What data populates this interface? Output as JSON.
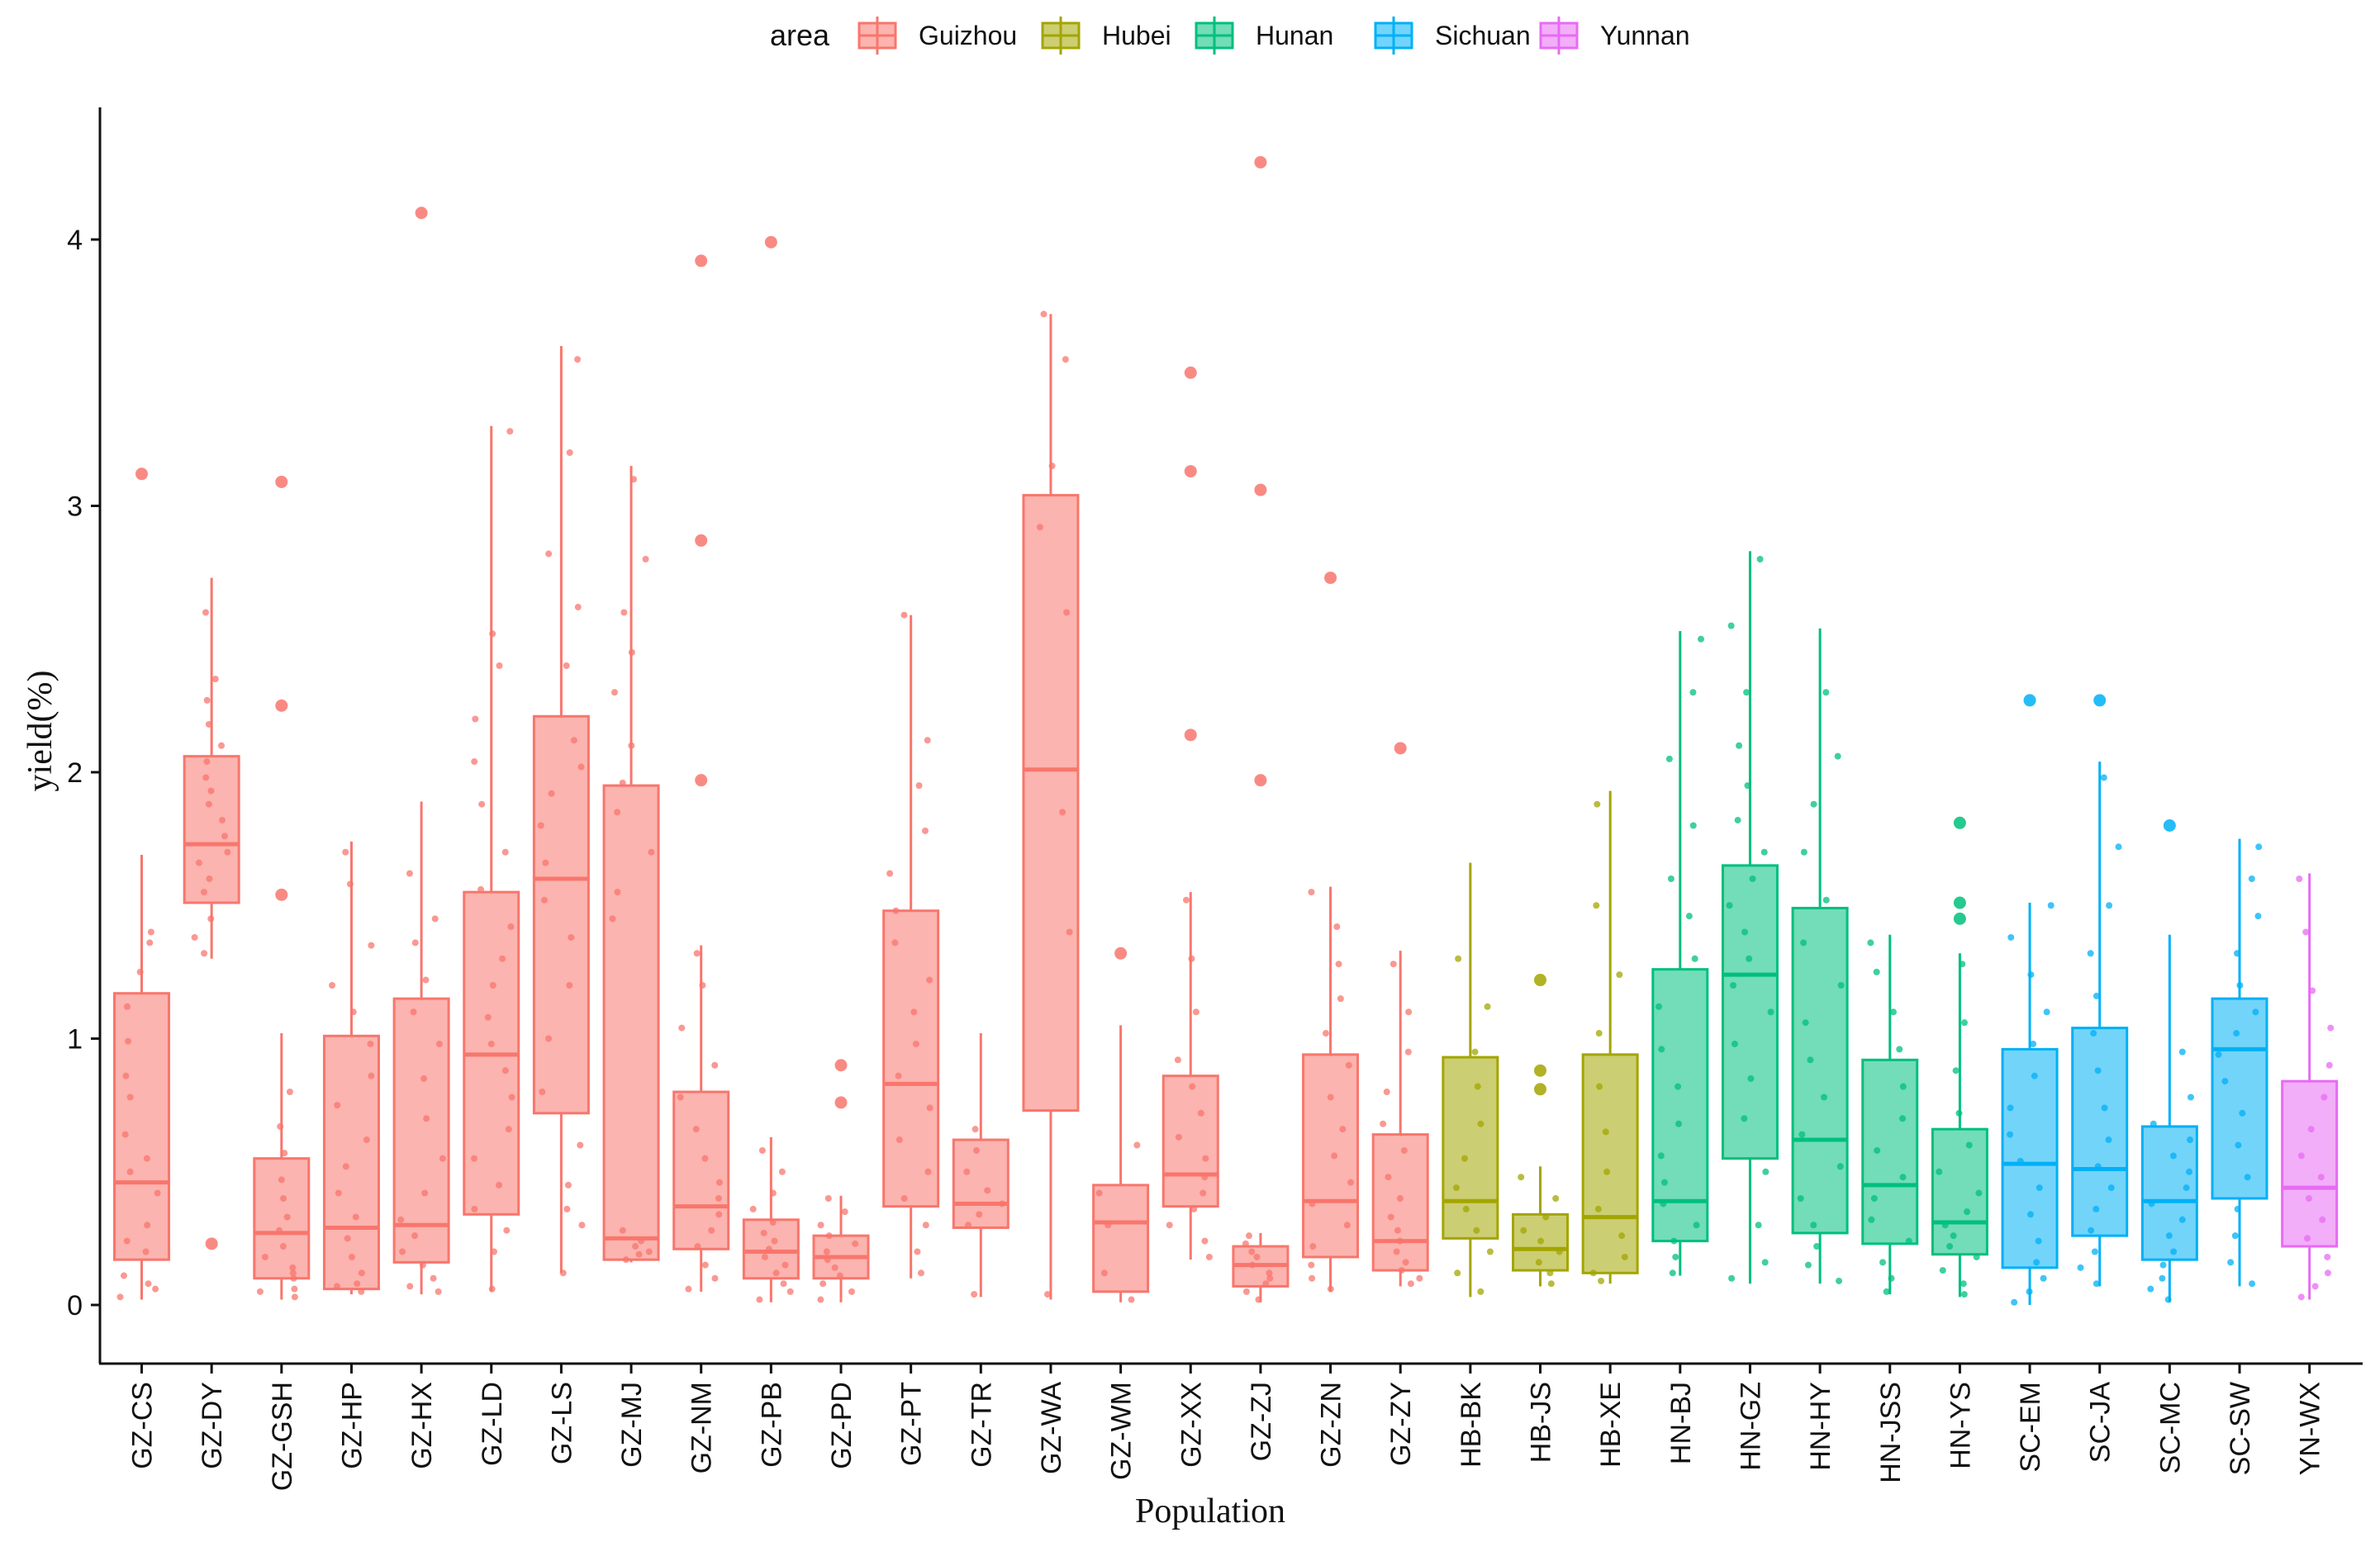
{
  "chart_data": {
    "type": "boxplot",
    "title": "",
    "xlabel": "Population",
    "ylabel": "yield(%)",
    "ylim": [
      -0.2,
      4.45
    ],
    "yticks": [
      0,
      1,
      2,
      3,
      4
    ],
    "ytick_labels": [
      "0",
      "1",
      "2",
      "3",
      "4"
    ],
    "grid": false,
    "legend": {
      "title": "area",
      "placement": "top-center",
      "entries": [
        {
          "name": "Guizhou",
          "color": "#F8766D"
        },
        {
          "name": "Hubei",
          "color": "#A3A500"
        },
        {
          "name": "Hunan",
          "color": "#00BF7D"
        },
        {
          "name": "Sichuan",
          "color": "#00B0F6"
        },
        {
          "name": "Yunnan",
          "color": "#E76BF3"
        }
      ]
    },
    "groups": [
      {
        "label": "GZ-CS",
        "area": "Guizhou",
        "whisker_low": 0.02,
        "q1": 0.17,
        "median": 0.46,
        "q3": 1.17,
        "whisker_high": 1.69,
        "outliers": [
          3.12
        ],
        "points": [
          0.03,
          0.06,
          0.11,
          0.2,
          0.24,
          0.3,
          0.42,
          0.5,
          0.64,
          0.78,
          0.86,
          0.99,
          1.12,
          1.25,
          1.36,
          1.4,
          0.08,
          0.55
        ]
      },
      {
        "label": "GZ-DY",
        "area": "Guizhou",
        "whisker_low": 1.3,
        "q1": 1.51,
        "median": 1.73,
        "q3": 2.06,
        "whisker_high": 2.73,
        "outliers": [
          0.23
        ],
        "points": [
          1.32,
          1.38,
          1.45,
          1.55,
          1.6,
          1.66,
          1.7,
          1.76,
          1.82,
          1.88,
          1.93,
          1.98,
          2.04,
          2.1,
          2.18,
          2.27,
          2.35,
          2.6
        ]
      },
      {
        "label": "GZ-GSH",
        "area": "Guizhou",
        "whisker_low": 0.02,
        "q1": 0.1,
        "median": 0.27,
        "q3": 0.55,
        "whisker_high": 1.02,
        "outliers": [
          3.09,
          2.25,
          1.54
        ],
        "points": [
          0.03,
          0.06,
          0.1,
          0.14,
          0.18,
          0.22,
          0.28,
          0.33,
          0.4,
          0.47,
          0.57,
          0.67,
          0.8,
          0.05,
          0.12
        ]
      },
      {
        "label": "GZ-HP",
        "area": "Guizhou",
        "whisker_low": 0.04,
        "q1": 0.06,
        "median": 0.29,
        "q3": 1.01,
        "whisker_high": 1.74,
        "outliers": [],
        "points": [
          0.05,
          0.08,
          0.12,
          0.18,
          0.25,
          0.33,
          0.42,
          0.52,
          0.62,
          0.75,
          0.86,
          0.98,
          1.1,
          1.2,
          1.35,
          1.58,
          1.7,
          0.07
        ]
      },
      {
        "label": "GZ-HX",
        "area": "Guizhou",
        "whisker_low": 0.04,
        "q1": 0.16,
        "median": 0.3,
        "q3": 1.15,
        "whisker_high": 1.89,
        "outliers": [
          4.1
        ],
        "points": [
          0.05,
          0.1,
          0.15,
          0.2,
          0.26,
          0.32,
          0.42,
          0.55,
          0.7,
          0.85,
          0.98,
          1.1,
          1.22,
          1.36,
          1.45,
          1.62,
          0.07
        ]
      },
      {
        "label": "GZ-LD",
        "area": "Guizhou",
        "whisker_low": 0.05,
        "q1": 0.34,
        "median": 0.94,
        "q3": 1.55,
        "whisker_high": 3.3,
        "outliers": [],
        "points": [
          0.06,
          0.2,
          0.28,
          0.36,
          0.45,
          0.55,
          0.66,
          0.78,
          0.88,
          0.98,
          1.08,
          1.2,
          1.3,
          1.42,
          1.56,
          1.7,
          1.88,
          2.04,
          2.2,
          2.4,
          2.52,
          3.28
        ]
      },
      {
        "label": "GZ-LS",
        "area": "Guizhou",
        "whisker_low": 0.12,
        "q1": 0.72,
        "median": 1.6,
        "q3": 2.21,
        "whisker_high": 3.6,
        "outliers": [],
        "points": [
          0.12,
          0.3,
          0.36,
          0.45,
          0.6,
          0.8,
          1.0,
          1.2,
          1.38,
          1.52,
          1.66,
          1.8,
          1.92,
          2.02,
          2.12,
          2.4,
          2.62,
          2.82,
          3.2,
          3.55
        ]
      },
      {
        "label": "GZ-MJ",
        "area": "Guizhou",
        "whisker_low": 0.16,
        "q1": 0.17,
        "median": 0.25,
        "q3": 1.95,
        "whisker_high": 3.15,
        "outliers": [],
        "points": [
          0.17,
          0.2,
          0.24,
          0.28,
          1.45,
          1.55,
          1.7,
          1.85,
          1.96,
          2.1,
          2.3,
          2.45,
          2.6,
          2.8,
          3.1,
          0.22,
          0.19
        ]
      },
      {
        "label": "GZ-NM",
        "area": "Guizhou",
        "whisker_low": 0.05,
        "q1": 0.21,
        "median": 0.37,
        "q3": 0.8,
        "whisker_high": 1.35,
        "outliers": [
          3.92,
          2.87,
          1.97
        ],
        "points": [
          0.06,
          0.1,
          0.15,
          0.22,
          0.28,
          0.34,
          0.4,
          0.46,
          0.55,
          0.66,
          0.78,
          0.9,
          1.04,
          1.2,
          1.32
        ]
      },
      {
        "label": "GZ-PB",
        "area": "Guizhou",
        "whisker_low": 0.01,
        "q1": 0.1,
        "median": 0.2,
        "q3": 0.32,
        "whisker_high": 0.63,
        "outliers": [
          3.99
        ],
        "points": [
          0.02,
          0.05,
          0.08,
          0.12,
          0.15,
          0.18,
          0.21,
          0.24,
          0.27,
          0.31,
          0.36,
          0.42,
          0.5,
          0.58
        ]
      },
      {
        "label": "GZ-PD",
        "area": "Guizhou",
        "whisker_low": 0.01,
        "q1": 0.1,
        "median": 0.18,
        "q3": 0.26,
        "whisker_high": 0.41,
        "outliers": [
          0.9,
          0.76
        ],
        "points": [
          0.02,
          0.05,
          0.08,
          0.11,
          0.14,
          0.17,
          0.2,
          0.23,
          0.26,
          0.3,
          0.35,
          0.4
        ]
      },
      {
        "label": "GZ-PT",
        "area": "Guizhou",
        "whisker_low": 0.1,
        "q1": 0.37,
        "median": 0.83,
        "q3": 1.48,
        "whisker_high": 2.59,
        "outliers": [],
        "points": [
          0.12,
          0.2,
          0.3,
          0.4,
          0.5,
          0.62,
          0.74,
          0.86,
          0.98,
          1.1,
          1.22,
          1.36,
          1.48,
          1.62,
          1.78,
          1.95,
          2.12,
          2.59
        ]
      },
      {
        "label": "GZ-TR",
        "area": "Guizhou",
        "whisker_low": 0.03,
        "q1": 0.29,
        "median": 0.38,
        "q3": 0.62,
        "whisker_high": 1.02,
        "outliers": [],
        "points": [
          0.04,
          0.3,
          0.34,
          0.38,
          0.43,
          0.5,
          0.58,
          0.66
        ]
      },
      {
        "label": "GZ-WA",
        "area": "Guizhou",
        "whisker_low": 0.02,
        "q1": 0.73,
        "median": 2.01,
        "q3": 3.04,
        "whisker_high": 3.72,
        "outliers": [],
        "points": [
          0.04,
          1.4,
          1.85,
          2.6,
          2.92,
          3.15,
          3.55,
          3.72
        ]
      },
      {
        "label": "GZ-WM",
        "area": "Guizhou",
        "whisker_low": 0.01,
        "q1": 0.05,
        "median": 0.31,
        "q3": 0.45,
        "whisker_high": 1.05,
        "outliers": [
          1.32
        ],
        "points": [
          0.02,
          0.12,
          0.3,
          0.42,
          0.6
        ]
      },
      {
        "label": "GZ-XX",
        "area": "Guizhou",
        "whisker_low": 0.17,
        "q1": 0.37,
        "median": 0.49,
        "q3": 0.86,
        "whisker_high": 1.55,
        "outliers": [
          3.5,
          3.13,
          2.14
        ],
        "points": [
          0.18,
          0.24,
          0.3,
          0.36,
          0.42,
          0.48,
          0.55,
          0.63,
          0.72,
          0.82,
          0.92,
          1.1,
          1.3,
          1.52
        ]
      },
      {
        "label": "GZ-ZJ",
        "area": "Guizhou",
        "whisker_low": 0.01,
        "q1": 0.07,
        "median": 0.15,
        "q3": 0.22,
        "whisker_high": 0.27,
        "outliers": [
          4.29,
          3.06,
          1.97
        ],
        "points": [
          0.02,
          0.05,
          0.08,
          0.1,
          0.12,
          0.15,
          0.18,
          0.2,
          0.23,
          0.26
        ]
      },
      {
        "label": "GZ-ZN",
        "area": "Guizhou",
        "whisker_low": 0.05,
        "q1": 0.18,
        "median": 0.39,
        "q3": 0.94,
        "whisker_high": 1.57,
        "outliers": [
          2.73
        ],
        "points": [
          0.06,
          0.1,
          0.15,
          0.22,
          0.3,
          0.38,
          0.46,
          0.56,
          0.66,
          0.78,
          0.9,
          1.02,
          1.15,
          1.28,
          1.42,
          1.55
        ]
      },
      {
        "label": "GZ-ZY",
        "area": "Guizhou",
        "whisker_low": 0.07,
        "q1": 0.13,
        "median": 0.24,
        "q3": 0.64,
        "whisker_high": 1.33,
        "outliers": [
          2.09
        ],
        "points": [
          0.08,
          0.1,
          0.13,
          0.16,
          0.2,
          0.24,
          0.28,
          0.33,
          0.4,
          0.48,
          0.58,
          0.68,
          0.8,
          0.95,
          1.1,
          1.28
        ]
      },
      {
        "label": "HB-BK",
        "area": "Hubei",
        "whisker_low": 0.03,
        "q1": 0.25,
        "median": 0.39,
        "q3": 0.93,
        "whisker_high": 1.66,
        "outliers": [],
        "points": [
          0.05,
          0.12,
          0.2,
          0.28,
          0.36,
          0.44,
          0.55,
          0.68,
          0.82,
          0.95,
          1.12,
          1.3
        ]
      },
      {
        "label": "HB-JS",
        "area": "Hubei",
        "whisker_low": 0.07,
        "q1": 0.13,
        "median": 0.21,
        "q3": 0.34,
        "whisker_high": 0.52,
        "outliers": [
          1.22,
          0.88,
          0.81
        ],
        "points": [
          0.08,
          0.12,
          0.16,
          0.2,
          0.24,
          0.28,
          0.33,
          0.4,
          0.48
        ]
      },
      {
        "label": "HB-XE",
        "area": "Hubei",
        "whisker_low": 0.08,
        "q1": 0.12,
        "median": 0.33,
        "q3": 0.94,
        "whisker_high": 1.93,
        "outliers": [],
        "points": [
          0.09,
          0.12,
          0.18,
          0.26,
          0.36,
          0.5,
          0.65,
          0.82,
          1.02,
          1.24,
          1.5,
          1.88
        ]
      },
      {
        "label": "HN-BJ",
        "area": "Hunan",
        "whisker_low": 0.11,
        "q1": 0.24,
        "median": 0.39,
        "q3": 1.26,
        "whisker_high": 2.53,
        "outliers": [],
        "points": [
          0.12,
          0.18,
          0.24,
          0.3,
          0.38,
          0.46,
          0.56,
          0.68,
          0.82,
          0.96,
          1.12,
          1.3,
          1.46,
          1.6,
          1.8,
          2.05,
          2.3,
          2.5
        ]
      },
      {
        "label": "HN-GZ",
        "area": "Hunan",
        "whisker_low": 0.08,
        "q1": 0.55,
        "median": 1.24,
        "q3": 1.65,
        "whisker_high": 2.83,
        "outliers": [],
        "points": [
          0.1,
          0.16,
          0.3,
          0.5,
          0.7,
          0.85,
          0.98,
          1.1,
          1.2,
          1.3,
          1.4,
          1.5,
          1.6,
          1.7,
          1.82,
          1.95,
          2.1,
          2.3,
          2.55,
          2.8
        ]
      },
      {
        "label": "HN-HY",
        "area": "Hunan",
        "whisker_low": 0.08,
        "q1": 0.27,
        "median": 0.62,
        "q3": 1.49,
        "whisker_high": 2.54,
        "outliers": [],
        "points": [
          0.09,
          0.15,
          0.22,
          0.3,
          0.4,
          0.52,
          0.64,
          0.78,
          0.92,
          1.06,
          1.2,
          1.36,
          1.52,
          1.7,
          1.88,
          2.06,
          2.3
        ]
      },
      {
        "label": "HN-JSS",
        "area": "Hunan",
        "whisker_low": 0.04,
        "q1": 0.23,
        "median": 0.45,
        "q3": 0.92,
        "whisker_high": 1.39,
        "outliers": [],
        "points": [
          0.05,
          0.1,
          0.16,
          0.24,
          0.32,
          0.4,
          0.48,
          0.58,
          0.7,
          0.82,
          0.96,
          1.1,
          1.25,
          1.36
        ]
      },
      {
        "label": "HN-YS",
        "area": "Hunan",
        "whisker_low": 0.03,
        "q1": 0.19,
        "median": 0.31,
        "q3": 0.66,
        "whisker_high": 1.32,
        "outliers": [
          1.81,
          1.51,
          1.45
        ],
        "points": [
          0.04,
          0.08,
          0.13,
          0.18,
          0.22,
          0.26,
          0.3,
          0.35,
          0.42,
          0.5,
          0.6,
          0.72,
          0.88,
          1.06,
          1.28
        ]
      },
      {
        "label": "SC-EM",
        "area": "Sichuan",
        "whisker_low": 0.0,
        "q1": 0.14,
        "median": 0.53,
        "q3": 0.96,
        "whisker_high": 1.51,
        "outliers": [
          2.27
        ],
        "points": [
          0.01,
          0.05,
          0.1,
          0.16,
          0.24,
          0.34,
          0.44,
          0.54,
          0.64,
          0.74,
          0.86,
          0.98,
          1.1,
          1.24,
          1.38,
          1.5
        ]
      },
      {
        "label": "SC-JA",
        "area": "Sichuan",
        "whisker_low": 0.07,
        "q1": 0.26,
        "median": 0.51,
        "q3": 1.04,
        "whisker_high": 2.04,
        "outliers": [
          2.27
        ],
        "points": [
          0.08,
          0.14,
          0.2,
          0.28,
          0.36,
          0.44,
          0.52,
          0.62,
          0.74,
          0.88,
          1.02,
          1.16,
          1.32,
          1.5,
          1.72,
          1.98
        ]
      },
      {
        "label": "SC-MC",
        "area": "Sichuan",
        "whisker_low": 0.01,
        "q1": 0.17,
        "median": 0.39,
        "q3": 0.67,
        "whisker_high": 1.39,
        "outliers": [
          1.8
        ],
        "points": [
          0.02,
          0.06,
          0.1,
          0.15,
          0.2,
          0.26,
          0.32,
          0.38,
          0.44,
          0.5,
          0.56,
          0.62,
          0.68,
          0.78,
          0.95
        ]
      },
      {
        "label": "SC-SW",
        "area": "Sichuan",
        "whisker_low": 0.07,
        "q1": 0.4,
        "median": 0.96,
        "q3": 1.15,
        "whisker_high": 1.75,
        "outliers": [],
        "points": [
          0.08,
          0.16,
          0.26,
          0.36,
          0.48,
          0.6,
          0.72,
          0.84,
          0.94,
          1.02,
          1.1,
          1.2,
          1.32,
          1.46,
          1.6,
          1.72
        ]
      },
      {
        "label": "YN-WX",
        "area": "Yunnan",
        "whisker_low": 0.02,
        "q1": 0.22,
        "median": 0.44,
        "q3": 0.84,
        "whisker_high": 1.62,
        "outliers": [],
        "points": [
          0.03,
          0.07,
          0.12,
          0.18,
          0.25,
          0.32,
          0.4,
          0.48,
          0.56,
          0.66,
          0.78,
          0.9,
          1.04,
          1.18,
          1.4,
          1.6
        ]
      }
    ]
  }
}
